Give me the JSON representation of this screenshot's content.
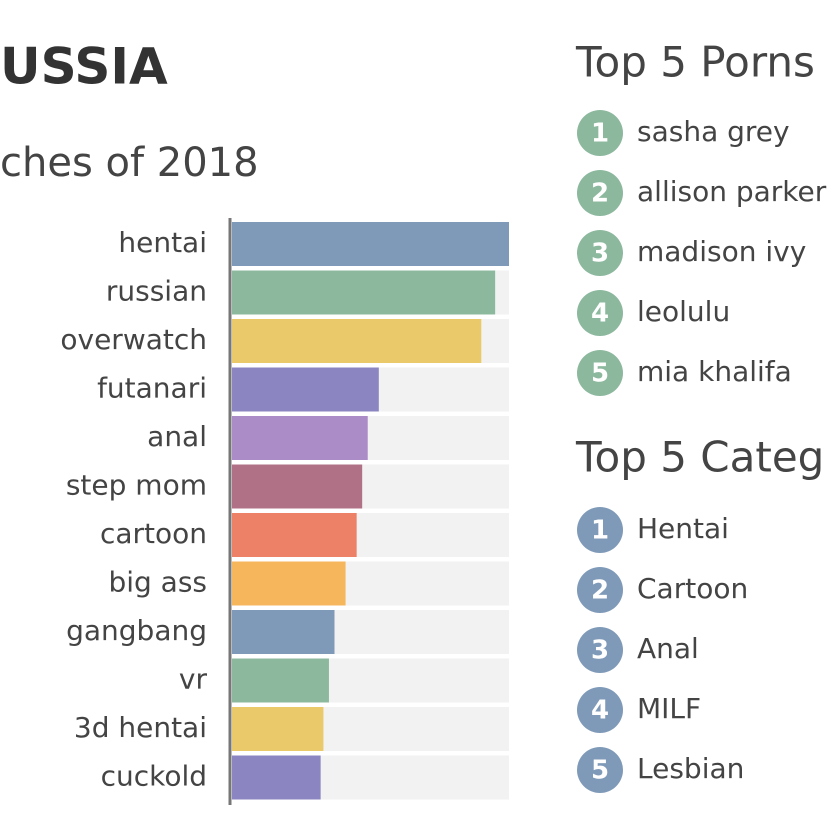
{
  "chart_data": {
    "type": "bar",
    "orientation": "horizontal",
    "title": "USSIA",
    "subtitle": "ches of 2018",
    "categories": [
      "hentai",
      "russian",
      "overwatch",
      "futanari",
      "anal",
      "step mom",
      "cartoon",
      "big ass",
      "gangbang",
      "vr",
      "3d hentai",
      "cuckold"
    ],
    "values": [
      100,
      95,
      90,
      53,
      49,
      47,
      45,
      41,
      37,
      35,
      33,
      32
    ],
    "colors": [
      "#7f9ab8",
      "#8cb89e",
      "#e9c96a",
      "#8b85c1",
      "#ab8cc6",
      "#b07187",
      "#ed8167",
      "#f6b65c",
      "#7f9ab8",
      "#8cb89e",
      "#e9c96a",
      "#8b85c1"
    ],
    "xlim": [
      0,
      100
    ],
    "track_color": "#f2f2f2"
  },
  "lists": [
    {
      "title": "Top 5 Porns",
      "color": "#8cb89e",
      "items": [
        {
          "rank": 1,
          "name": "sasha grey"
        },
        {
          "rank": 2,
          "name": "allison parker"
        },
        {
          "rank": 3,
          "name": "madison ivy"
        },
        {
          "rank": 4,
          "name": "leolulu"
        },
        {
          "rank": 5,
          "name": "mia khalifa"
        }
      ]
    },
    {
      "title": "Top 5 Categ",
      "color": "#7f9ab8",
      "items": [
        {
          "rank": 1,
          "name": "Hentai"
        },
        {
          "rank": 2,
          "name": "Cartoon"
        },
        {
          "rank": 3,
          "name": "Anal"
        },
        {
          "rank": 4,
          "name": "MILF"
        },
        {
          "rank": 5,
          "name": "Lesbian"
        }
      ]
    }
  ]
}
